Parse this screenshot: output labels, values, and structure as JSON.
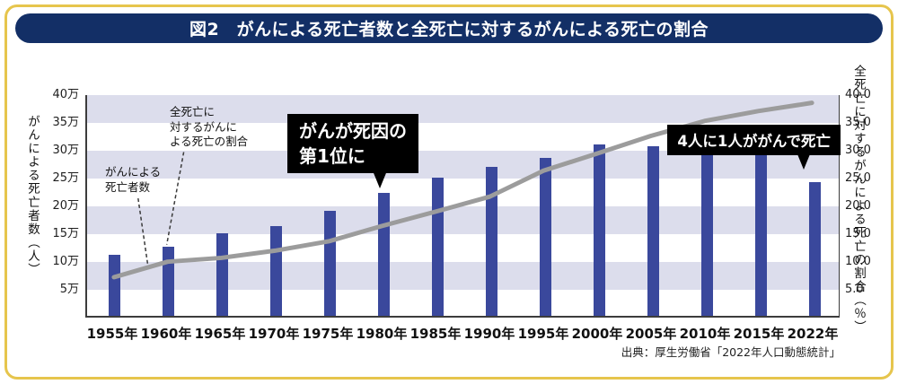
{
  "page": {
    "title": "図2　がんによる死亡者数と全死亡に対するがんによる死亡の割合",
    "source": "出典：厚生労働省「2022年人口動態統計」"
  },
  "colors": {
    "frame_border": "#e6c54d",
    "title_bg": "#132f66",
    "title_text": "#ffffff",
    "bar": "#3a489c",
    "line": "#9c9c9c",
    "stripe": "#dcddec",
    "callout_bg": "#000000",
    "callout_text": "#ffffff"
  },
  "axes": {
    "left_title": "がんによる死亡者数（人）",
    "left_ticks": [
      "40万",
      "35万",
      "30万",
      "25万",
      "20万",
      "15万",
      "10万",
      "5万"
    ],
    "right_title": "全死亡に対するがんによる死亡の割合（％）",
    "right_ticks": [
      "40.0",
      "35.0",
      "30.0",
      "25.0",
      "20.0",
      "15.0",
      "10.0",
      "5.0"
    ]
  },
  "annotations": {
    "deaths_label": "がんによる\n死亡者数",
    "ratio_label": "全死亡に\n対するがんに\nよる死亡の割合",
    "callout_1980_line1": "がんが死因の",
    "callout_1980_line2": "第1位に",
    "callout_2022": "4人に1人ががんで死亡"
  },
  "chart_data": {
    "type": "combo-bar-line",
    "title": "がんによる死亡者数と全死亡に対するがんによる死亡の割合",
    "source": "厚生労働省「2022年人口動態統計」",
    "categories": [
      "1955年",
      "1960年",
      "1965年",
      "1970年",
      "1975年",
      "1980年",
      "1985年",
      "1990年",
      "1995年",
      "2000年",
      "2005年",
      "2010年",
      "2015年",
      "2022年"
    ],
    "axis_max": 40,
    "series": [
      {
        "name": "全死亡に対するがんによる死亡の割合",
        "type": "bar",
        "axis": "right",
        "unit": "%",
        "values": [
          10.9,
          12.4,
          14.8,
          16.1,
          18.9,
          22.1,
          24.8,
          26.8,
          28.4,
          30.8,
          30.5,
          30.0,
          29.4,
          24.0
        ]
      },
      {
        "name": "がんによる死亡者数",
        "type": "line",
        "axis": "left",
        "unit": "万人",
        "values": [
          7.0,
          9.8,
          10.5,
          11.8,
          13.5,
          16.3,
          18.9,
          21.6,
          26.3,
          29.4,
          32.6,
          35.3,
          37.1,
          38.6
        ]
      }
    ],
    "left_axis": {
      "label": "がんによる死亡者数（人）",
      "range_万": [
        0,
        40
      ],
      "tick_step_万": 5
    },
    "right_axis": {
      "label": "全死亡に対するがんによる死亡の割合（％）",
      "range": [
        0,
        40
      ],
      "tick_step": 5
    },
    "grid": "horizontal-bands",
    "legend_position": "none"
  }
}
